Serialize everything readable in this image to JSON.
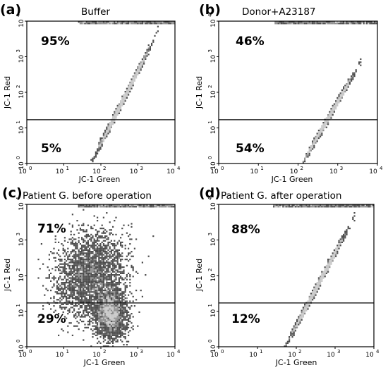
{
  "chart_data": [
    {
      "type": "scatter",
      "panel_label": "(a)",
      "title": "Buffer",
      "xlabel": "JC-1 Green",
      "ylabel": "JC-1 Red",
      "x_scale": "log",
      "y_scale": "log",
      "xlim": [
        1,
        10000
      ],
      "ylim": [
        1,
        10000
      ],
      "x_ticks": [
        "10",
        "10",
        "10",
        "10",
        "10"
      ],
      "x_tick_exps": [
        "0",
        "1",
        "2",
        "3",
        "4"
      ],
      "y_ticks": [
        "10",
        "10",
        "10",
        "10",
        "10"
      ],
      "y_tick_exps": [
        "0",
        "1",
        "2",
        "3",
        "4"
      ],
      "gate_y": 17,
      "quadrant_labels": {
        "upper": "95%",
        "lower": "5%"
      },
      "cloud": {
        "x_center": 400,
        "y_center": 60,
        "spread": "moderate",
        "tilt": "diagonal",
        "saturation_band_at_top": true
      }
    },
    {
      "type": "scatter",
      "panel_label": "(b)",
      "title": "Donor+A23187",
      "xlabel": "JC-1 Green",
      "ylabel": "JC-1 Red",
      "x_scale": "log",
      "y_scale": "log",
      "xlim": [
        1,
        10000
      ],
      "ylim": [
        1,
        10000
      ],
      "x_ticks": [
        "10",
        "10",
        "10",
        "10",
        "10"
      ],
      "x_tick_exps": [
        "0",
        "1",
        "2",
        "3",
        "4"
      ],
      "y_ticks": [
        "10",
        "10",
        "10",
        "10",
        "10"
      ],
      "y_tick_exps": [
        "0",
        "1",
        "2",
        "3",
        "4"
      ],
      "gate_y": 17,
      "quadrant_labels": {
        "upper": "46%",
        "lower": "54%"
      },
      "cloud": {
        "x_center": 600,
        "y_center": 20,
        "spread": "compact",
        "tilt": "diagonal",
        "saturation_band_at_top": true
      }
    },
    {
      "type": "scatter",
      "panel_label": "(c)",
      "title": "Patient G. before operation",
      "xlabel": "JC-1 Green",
      "ylabel": "JC-1 Red",
      "x_scale": "log",
      "y_scale": "log",
      "xlim": [
        1,
        10000
      ],
      "ylim": [
        1,
        10000
      ],
      "x_ticks": [
        "10",
        "10",
        "10",
        "10",
        "10"
      ],
      "x_tick_exps": [
        "0",
        "1",
        "2",
        "3",
        "4"
      ],
      "y_ticks": [
        "10",
        "10",
        "10",
        "10",
        "10"
      ],
      "y_tick_exps": [
        "0",
        "1",
        "2",
        "3",
        "4"
      ],
      "gate_y": 17,
      "quadrant_labels": {
        "upper": "71%",
        "lower": "29%"
      },
      "cloud": {
        "x_center": 120,
        "y_center": 60,
        "spread": "wide",
        "tilt": "bimodal",
        "saturation_band_at_top": true
      }
    },
    {
      "type": "scatter",
      "panel_label": "(d)",
      "title": "Patient G. after operation",
      "xlabel": "JC-1 Green",
      "ylabel": "JC-1 Red",
      "x_scale": "log",
      "y_scale": "log",
      "xlim": [
        1,
        10000
      ],
      "ylim": [
        1,
        10000
      ],
      "x_ticks": [
        "10",
        "10",
        "10",
        "10",
        "10"
      ],
      "x_tick_exps": [
        "0",
        "1",
        "2",
        "3",
        "4"
      ],
      "y_ticks": [
        "10",
        "10",
        "10",
        "10",
        "10"
      ],
      "y_tick_exps": [
        "0",
        "1",
        "2",
        "3",
        "4"
      ],
      "gate_y": 17,
      "quadrant_labels": {
        "upper": "88%",
        "lower": "12%"
      },
      "cloud": {
        "x_center": 350,
        "y_center": 50,
        "spread": "moderate",
        "tilt": "diagonal",
        "saturation_band_at_top": true
      }
    }
  ],
  "colors": {
    "dark": "#4d4d4d",
    "mid": "#8f8f8f",
    "light": "#c7c7c7",
    "axis": "#000000",
    "background": "#ffffff"
  }
}
